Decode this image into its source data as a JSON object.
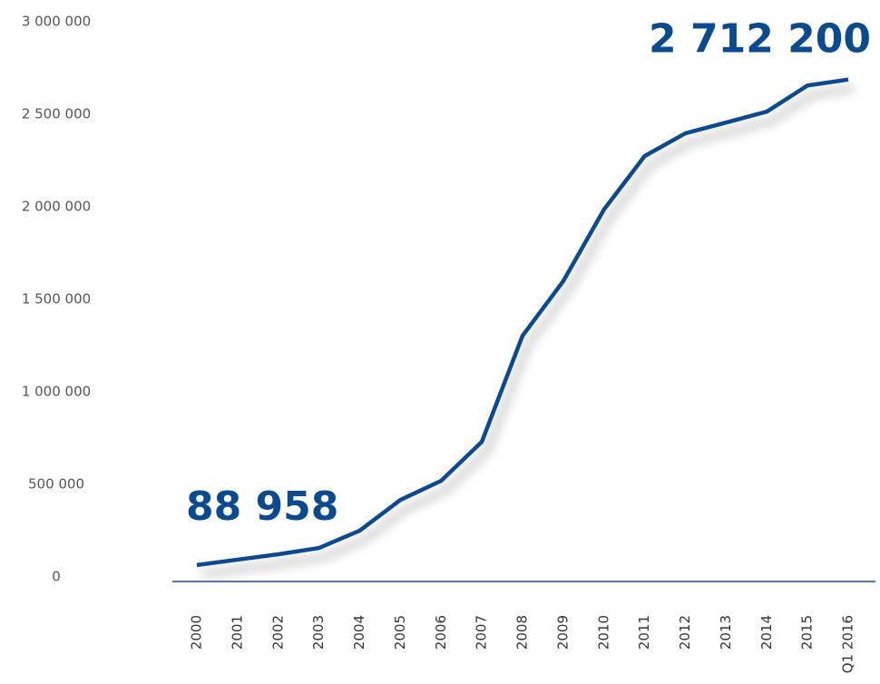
{
  "chart_data": {
    "type": "line",
    "categories": [
      "2000",
      "2001",
      "2002",
      "2003",
      "2004",
      "2005",
      "2006",
      "2007",
      "2008",
      "2009",
      "2010",
      "2011",
      "2012",
      "2013",
      "2014",
      "2015",
      "Q1 2016"
    ],
    "series": [
      {
        "color": "#0b4a8f",
        "values": [
          88958,
          118000,
          147000,
          181000,
          275000,
          441000,
          544000,
          755000,
          1328000,
          1623000,
          2010000,
          2299000,
          2422000,
          2480000,
          2539000,
          2680000,
          2712200
        ],
        "value_labels": [
          "88 958",
          null,
          null,
          null,
          null,
          null,
          null,
          null,
          null,
          null,
          null,
          null,
          null,
          null,
          null,
          null,
          "2 712 200"
        ]
      }
    ],
    "ylim": [
      0,
      3000000
    ],
    "yticks": [
      {
        "value": 0,
        "label": "0"
      },
      {
        "value": 500000,
        "label": "500 000"
      },
      {
        "value": 1000000,
        "label": "1 000 000"
      },
      {
        "value": 1500000,
        "label": "1 500 000"
      },
      {
        "value": 2000000,
        "label": "2 000 000"
      },
      {
        "value": 2500000,
        "label": "2 500 000"
      },
      {
        "value": 3000000,
        "label": "3 000 000"
      }
    ],
    "grid": false
  }
}
